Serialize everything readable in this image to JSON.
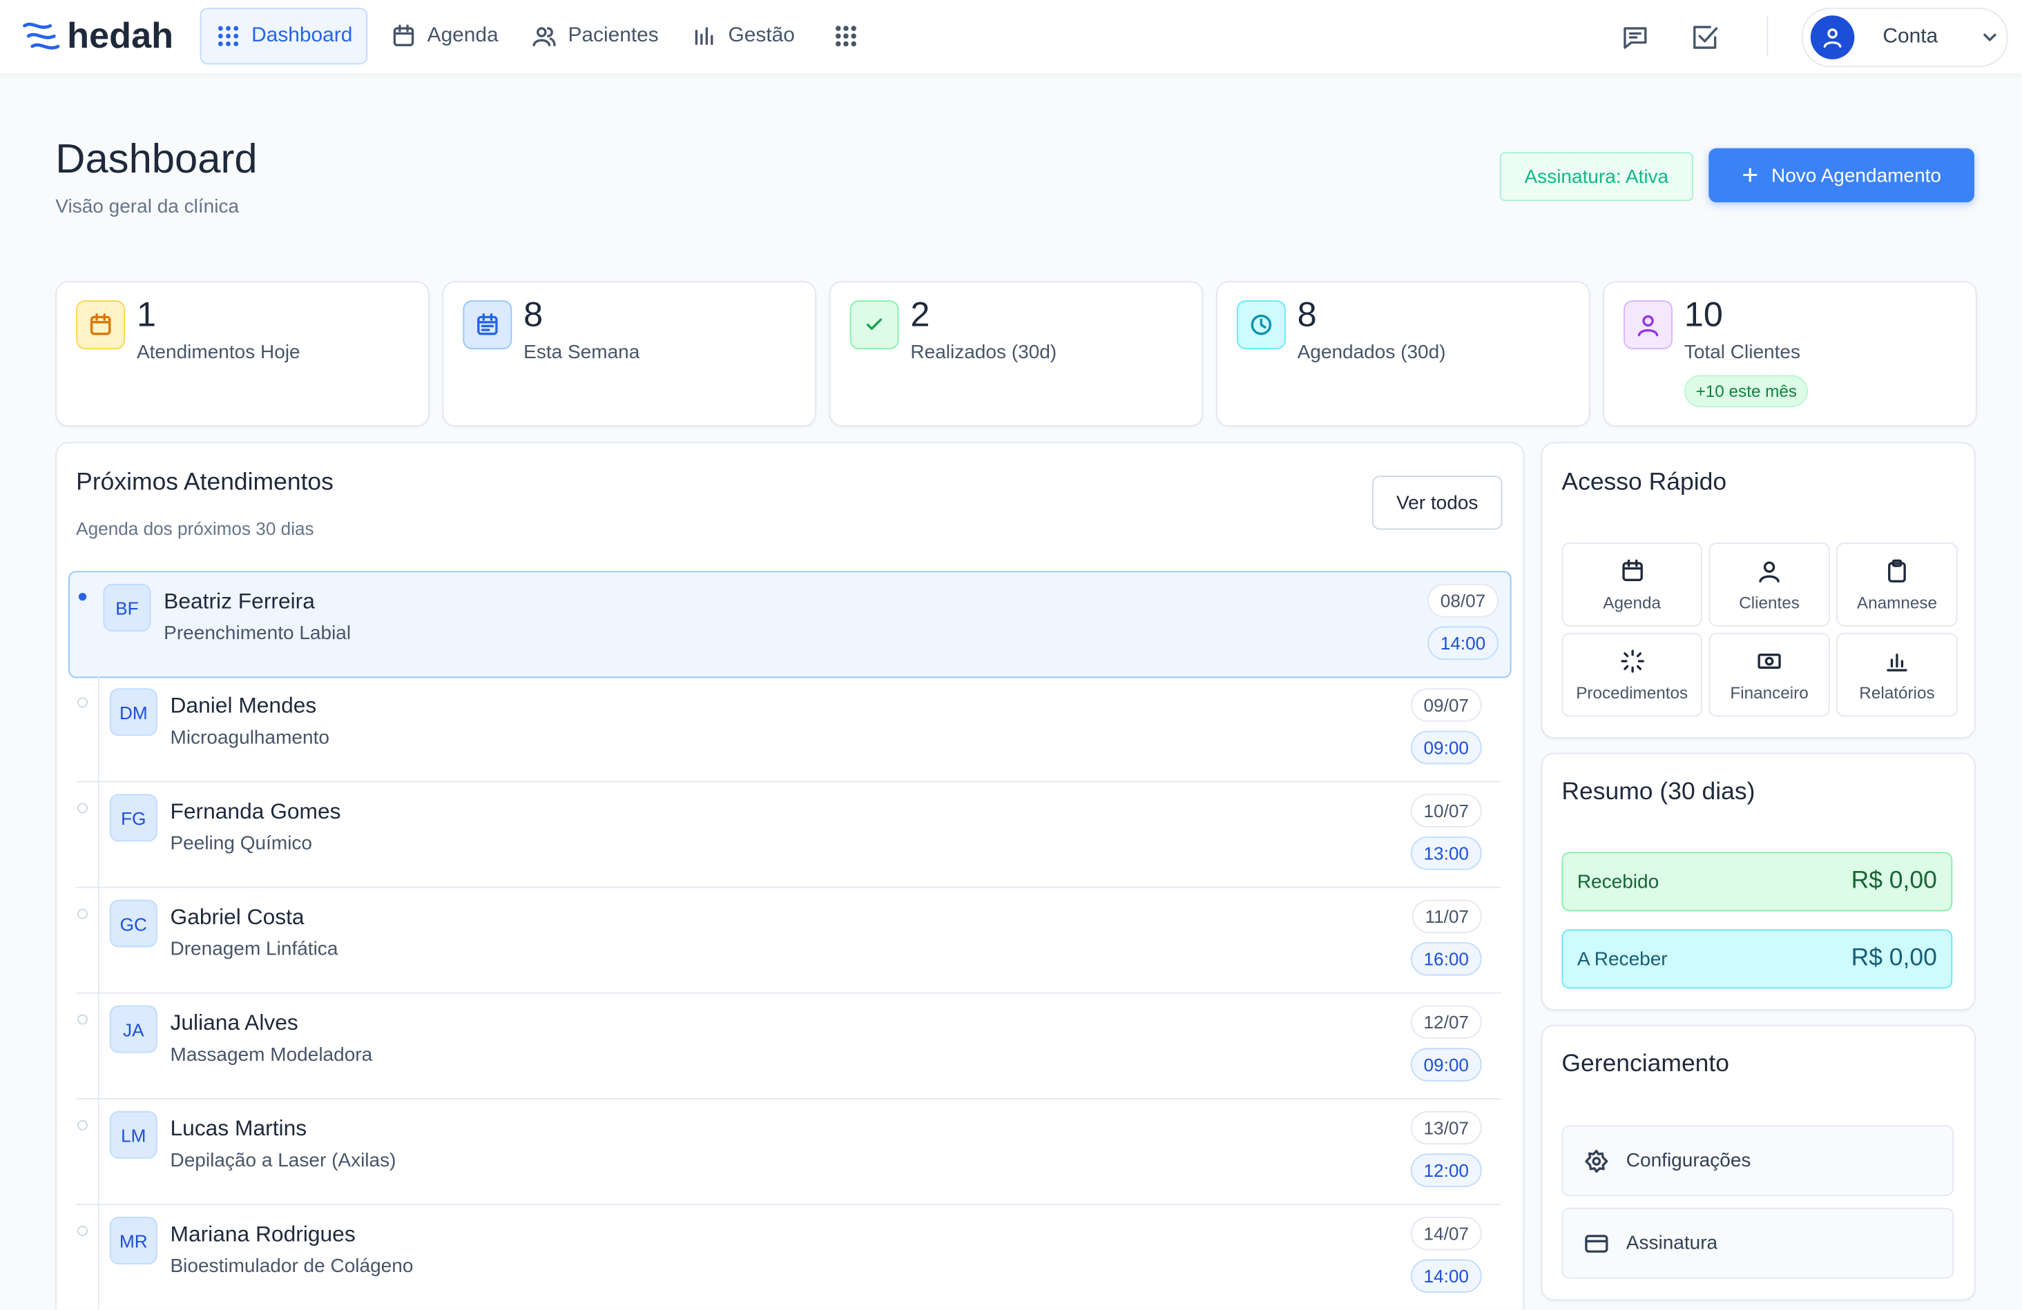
{
  "nav": {
    "brand": "hedah",
    "items": [
      "Dashboard",
      "Agenda",
      "Pacientes",
      "Gestão"
    ],
    "account": "Conta"
  },
  "header": {
    "title": "Dashboard",
    "subtitle": "Visão geral da clínica",
    "status": "Assinatura: Ativa",
    "new_button": "Novo Agendamento"
  },
  "stats": [
    {
      "value": 1,
      "label": "Atendimentos Hoje"
    },
    {
      "value": 8,
      "label": "Esta Semana"
    },
    {
      "value": 2,
      "label": "Realizados (30d)"
    },
    {
      "value": 8,
      "label": "Agendados (30d)"
    },
    {
      "value": 10,
      "label": "Total Clientes",
      "badge": "+10 este mês"
    }
  ],
  "appointments": {
    "title": "Próximos Atendimentos",
    "subtitle": "Agenda dos próximos 30 dias",
    "view_all": "Ver todos",
    "items": [
      {
        "initials": "BF",
        "name": "Beatriz Ferreira",
        "service": "Preenchimento Labial",
        "date": "08/07",
        "time": "14:00"
      },
      {
        "initials": "DM",
        "name": "Daniel Mendes",
        "service": "Microagulhamento",
        "date": "09/07",
        "time": "09:00"
      },
      {
        "initials": "FG",
        "name": "Fernanda Gomes",
        "service": "Peeling Químico",
        "date": "10/07",
        "time": "13:00"
      },
      {
        "initials": "GC",
        "name": "Gabriel Costa",
        "service": "Drenagem Linfática",
        "date": "11/07",
        "time": "16:00"
      },
      {
        "initials": "JA",
        "name": "Juliana Alves",
        "service": "Massagem Modeladora",
        "date": "12/07",
        "time": "09:00"
      },
      {
        "initials": "LM",
        "name": "Lucas Martins",
        "service": "Depilação a Laser (Axilas)",
        "date": "13/07",
        "time": "12:00"
      },
      {
        "initials": "MR",
        "name": "Mariana Rodrigues",
        "service": "Bioestimulador de Colágeno",
        "date": "14/07",
        "time": "14:00"
      }
    ]
  },
  "quick_access": {
    "title": "Acesso Rápido",
    "items": [
      "Agenda",
      "Clientes",
      "Anamnese",
      "Procedimentos",
      "Financeiro",
      "Relatórios"
    ]
  },
  "summary": {
    "title": "Resumo (30 dias)",
    "rows": [
      {
        "label": "Recebido",
        "value": "R$ 0,00"
      },
      {
        "label": "A Receber",
        "value": "R$ 0,00"
      }
    ]
  },
  "management": {
    "title": "Gerenciamento",
    "items": [
      "Configurações",
      "Assinatura"
    ]
  }
}
